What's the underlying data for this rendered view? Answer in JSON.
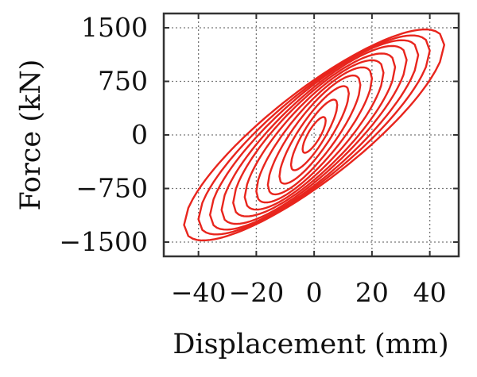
{
  "chart_data": {
    "type": "line",
    "title": "",
    "xlabel": "Displacement (mm)",
    "ylabel": "Force (kN)",
    "xlim": [
      -52,
      50
    ],
    "ylim": [
      -1700,
      1700
    ],
    "x_ticks": [
      -40,
      -20,
      0,
      20,
      40
    ],
    "x_tick_labels": [
      "−40",
      "−20",
      "0",
      "20",
      "40"
    ],
    "y_ticks": [
      1500,
      750,
      0,
      -750,
      -1500
    ],
    "y_tick_labels": [
      "1500",
      "750",
      "0",
      "−750",
      "−1500"
    ],
    "grid": true,
    "grid_style": "dotted",
    "legend": "none",
    "line_color": "#e8251d",
    "loops": [
      {
        "dmax": 4,
        "fmax": 200,
        "width": 150
      },
      {
        "dmax": 8,
        "fmax": 420,
        "width": 260
      },
      {
        "dmax": 12,
        "fmax": 580,
        "width": 360
      },
      {
        "dmax": 16,
        "fmax": 700,
        "width": 450
      },
      {
        "dmax": 20,
        "fmax": 790,
        "width": 520
      },
      {
        "dmax": 24,
        "fmax": 870,
        "width": 580
      },
      {
        "dmax": 28,
        "fmax": 950,
        "width": 630
      },
      {
        "dmax": 32,
        "fmax": 1050,
        "width": 670
      },
      {
        "dmax": 36,
        "fmax": 1120,
        "width": 710
      },
      {
        "dmax": 40,
        "fmax": 1180,
        "width": 740
      },
      {
        "dmax": 45,
        "fmax": 1260,
        "width": 770
      }
    ]
  }
}
